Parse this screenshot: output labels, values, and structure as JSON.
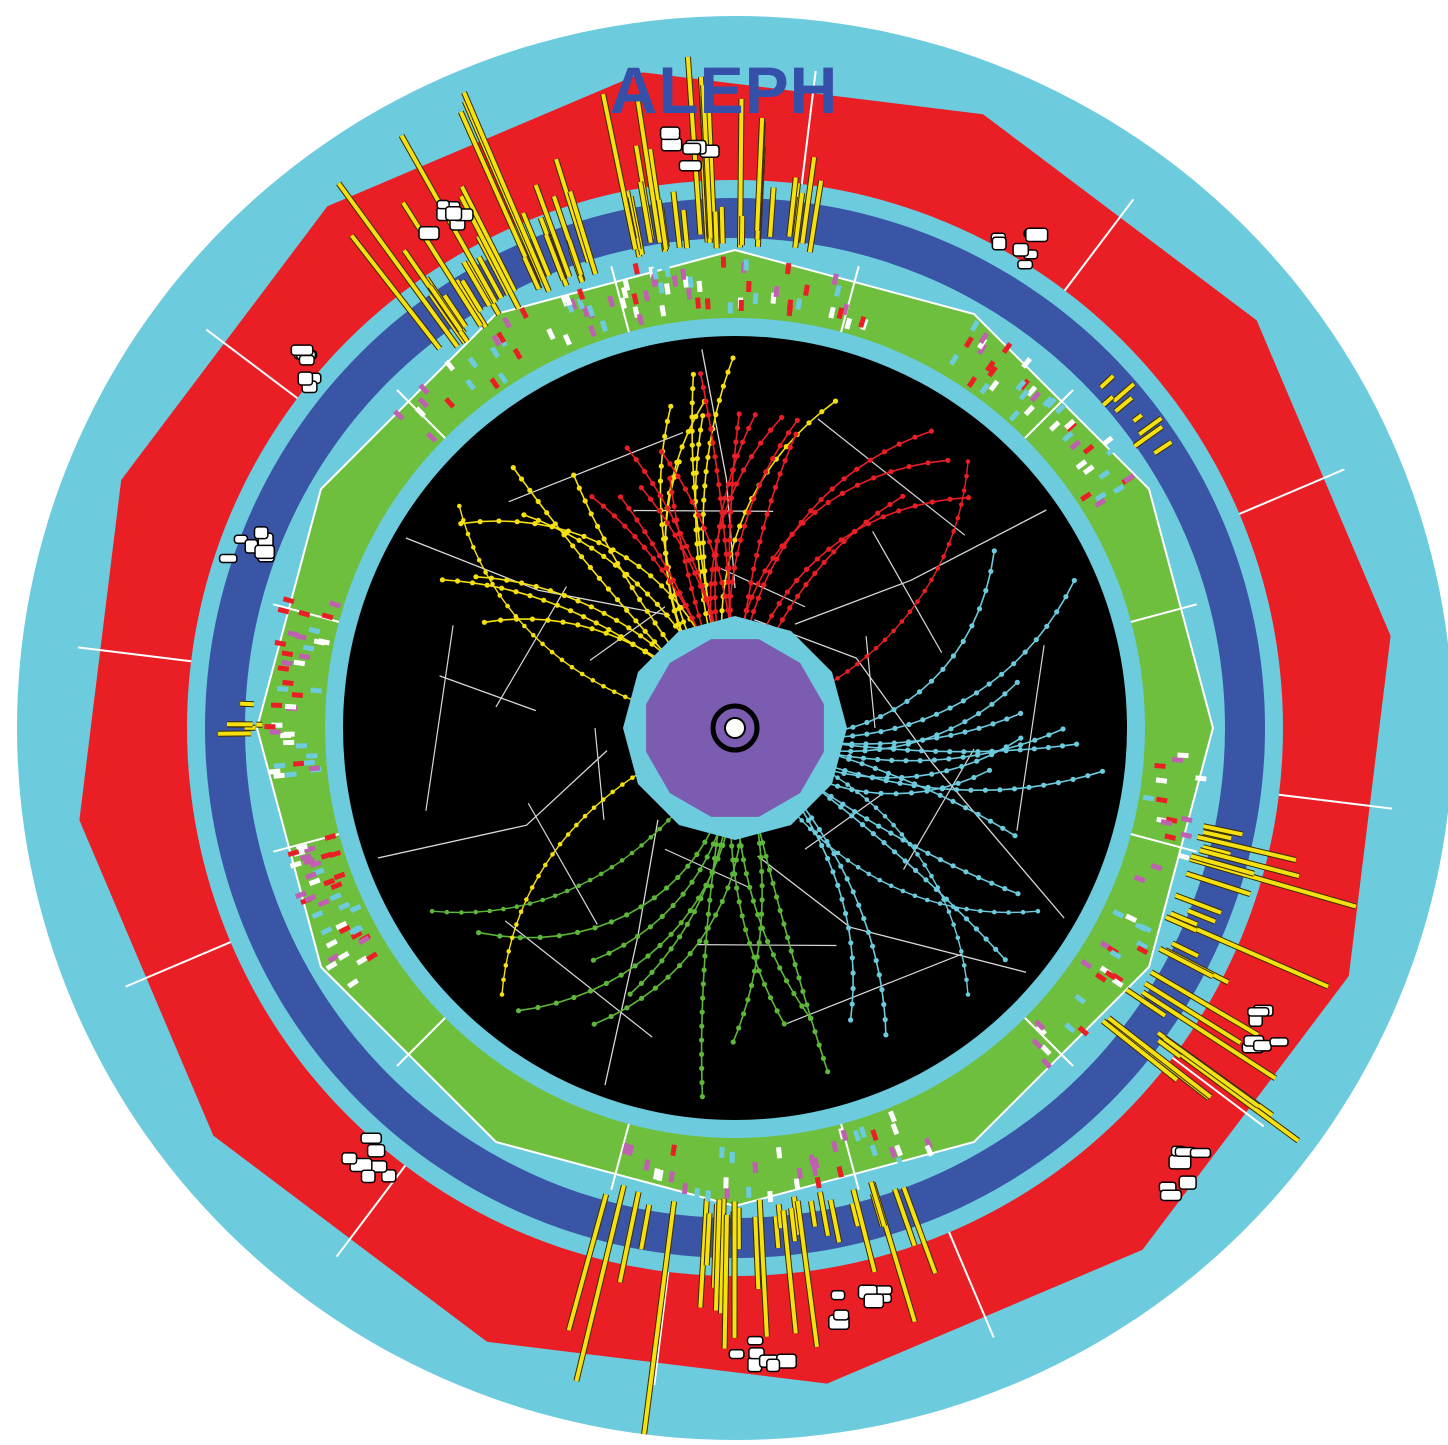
{
  "title": "ALEPH",
  "colors": {
    "outer_ring": "#6ccbdd",
    "hadron_calorimeter": "#ea1f25",
    "coil": "#3a55a6",
    "em_calorimeter": "#6fbf3f",
    "tracker": "#000000",
    "inner_detector": "#7b5cb0",
    "calorimeter_tower": "#f5e10f",
    "jet_yellow": "#f5e10f",
    "jet_red": "#ea1f25",
    "jet_cyan": "#6ccbdd",
    "jet_green": "#5db83a",
    "hit_magenta": "#c060b0",
    "muon_hit": "#ffffff"
  },
  "jets": [
    {
      "name": "yellow",
      "color": "#f5e10f",
      "direction_deg": 115,
      "track_count": 14
    },
    {
      "name": "red",
      "color": "#ea1f25",
      "direction_deg": 92,
      "track_count": 16
    },
    {
      "name": "cyan",
      "color": "#6ccbdd",
      "direction_deg": -25,
      "track_count": 14
    },
    {
      "name": "green",
      "color": "#5db83a",
      "direction_deg": -85,
      "track_count": 10
    }
  ],
  "icons": {
    "event_display": "collision-event-icon"
  }
}
